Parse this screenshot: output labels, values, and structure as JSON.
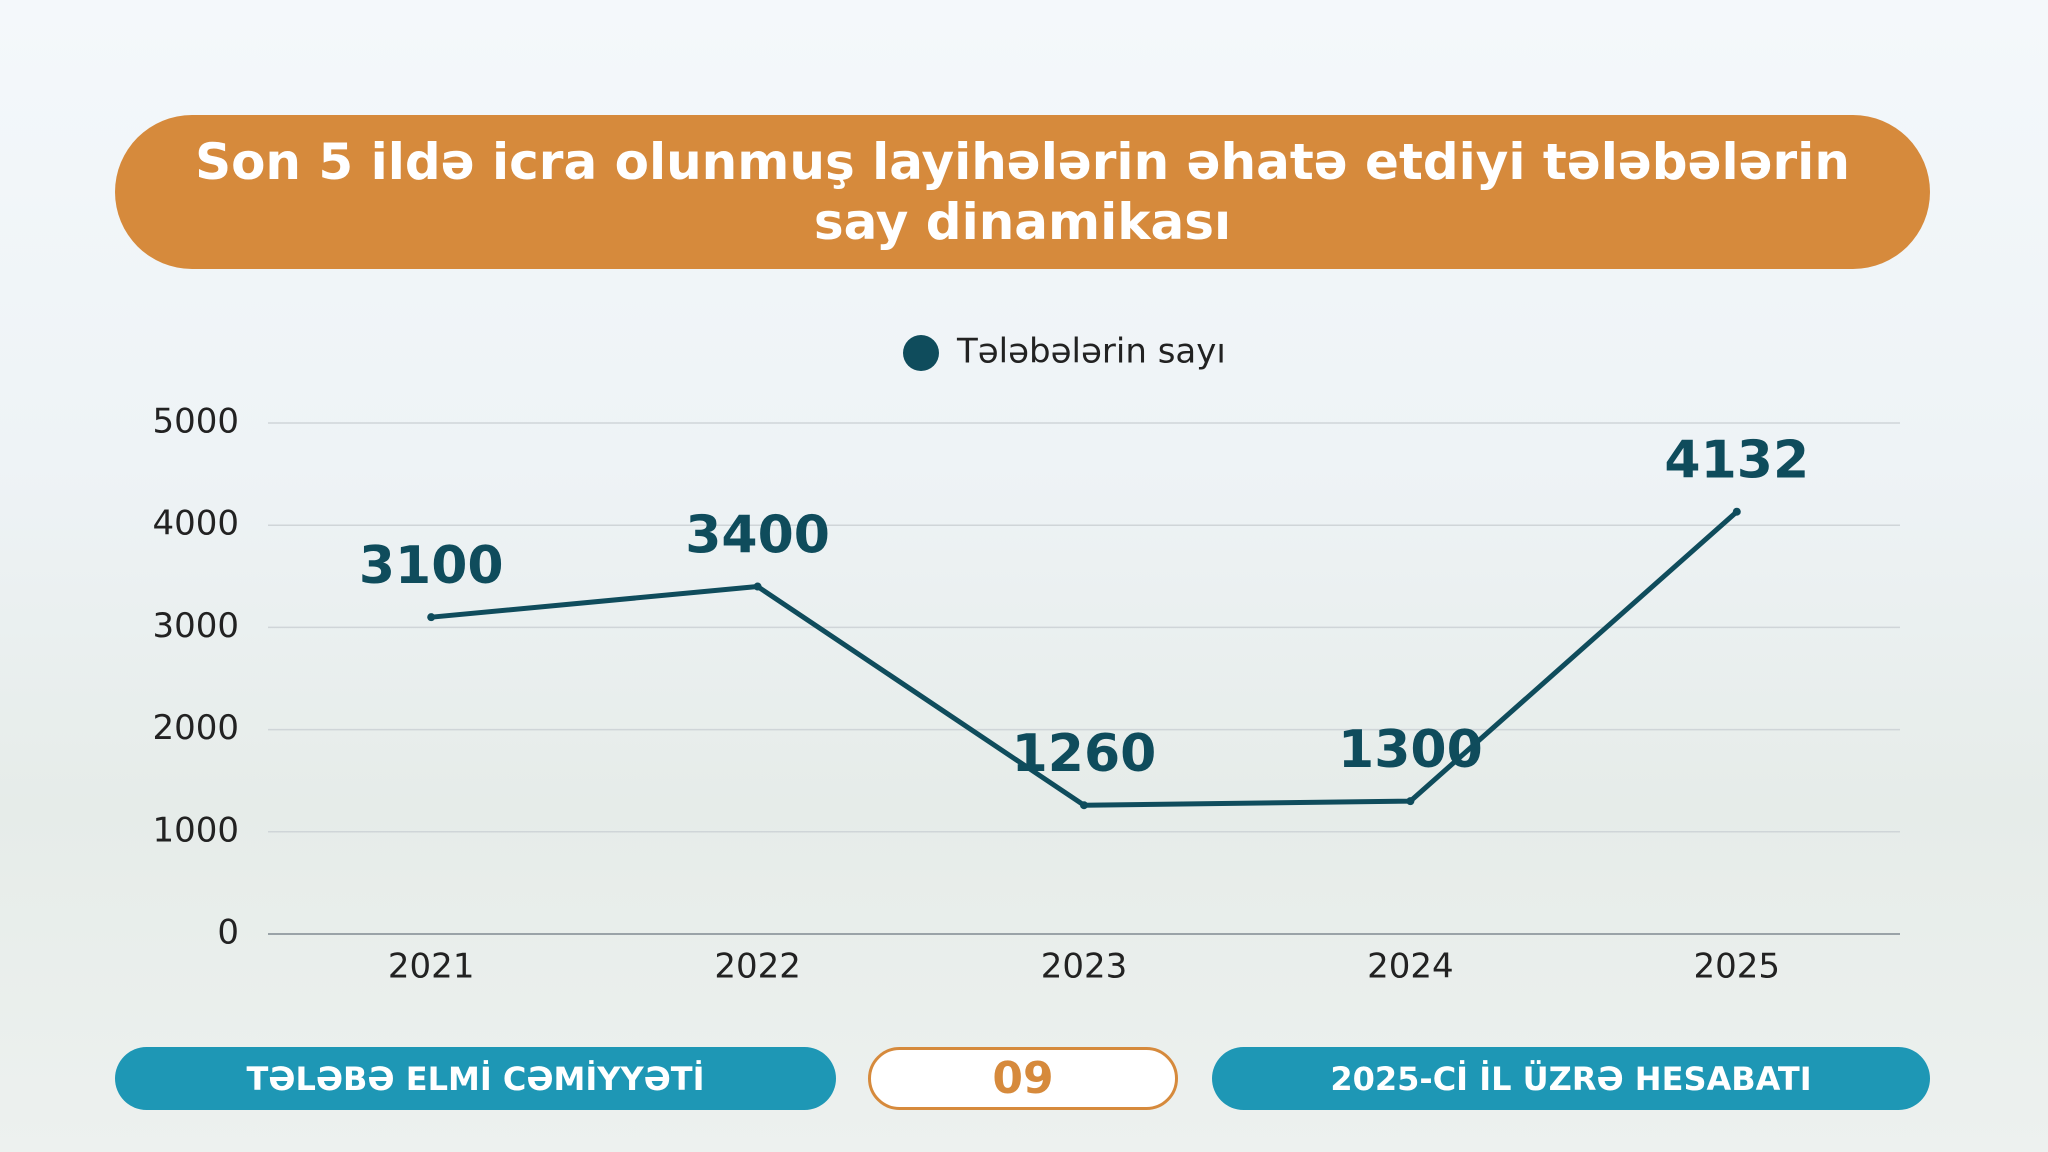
{
  "chart_data": {
    "type": "line",
    "title": "Son 5 ildə icra olunmuş layihələrin əhatə etdiyi tələbələrin say dinamikası",
    "categories": [
      "2021",
      "2022",
      "2023",
      "2024",
      "2025"
    ],
    "series": [
      {
        "name": "Tələbələrin sayı",
        "color": "#0f4c5c",
        "values": [
          3100,
          3400,
          1260,
          1300,
          4132
        ]
      }
    ],
    "ylim": [
      0,
      5000
    ],
    "yticks": [
      0,
      1000,
      2000,
      3000,
      4000,
      5000
    ],
    "grid": true,
    "legend": "top"
  },
  "footer": {
    "left": "TƏLƏBƏ ELMİ CƏMİYYƏTİ",
    "page": "09",
    "right": "2025-Cİ İL ÜZRƏ HESABATI"
  }
}
